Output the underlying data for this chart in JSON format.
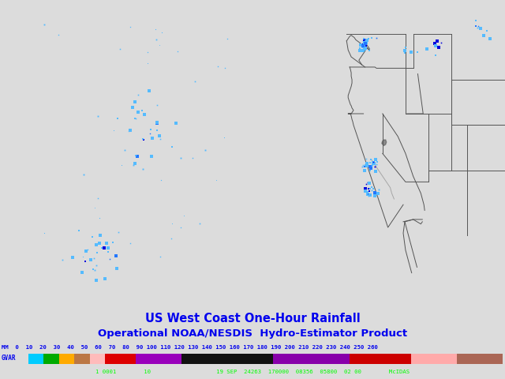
{
  "title1": "US West Coast One-Hour Rainfall",
  "title2": "Operational NOAA/NESDIS  Hydro-Estimator Product",
  "title_color": "#0000EE",
  "title_fontsize": 10.5,
  "subtitle_fontsize": 9.5,
  "bg_color": "#DCDCDC",
  "map_bg": "#DCDCDC",
  "bottom_bar_color": "#006400",
  "bottom_text": "1 0001        10                   19 SEP  24263  170000  08356  05800  02 00        McIDAS",
  "bottom_text_color": "#00FF00",
  "line_color": "#555555",
  "lw": 0.7,
  "colorbar_colors": [
    "#00BFFF",
    "#00AA00",
    "#FFB800",
    "#BB7744",
    "#FFBBBB",
    "#DD0000",
    "#DD0000",
    "#990099",
    "#000000",
    "#000000",
    "#000000",
    "#000000",
    "#880099",
    "#880099",
    "#880099",
    "#880099",
    "#880099",
    "#CC0000",
    "#CC0000",
    "#CC0000",
    "#CC0000",
    "#FFAAAA",
    "#FFAAAA",
    "#FFAAAA",
    "#BB7755",
    "#BB7755",
    "#BB7755"
  ],
  "mm_text": "MM  0  10  20  30  40  50  60  70  80  90 100 110 120 130 140 150 160 170 180 190 200 210 220 230 240 250 260",
  "mm_fontsize": 5.2,
  "gvar_text": "GVAR",
  "gvar_fontsize": 5.5
}
